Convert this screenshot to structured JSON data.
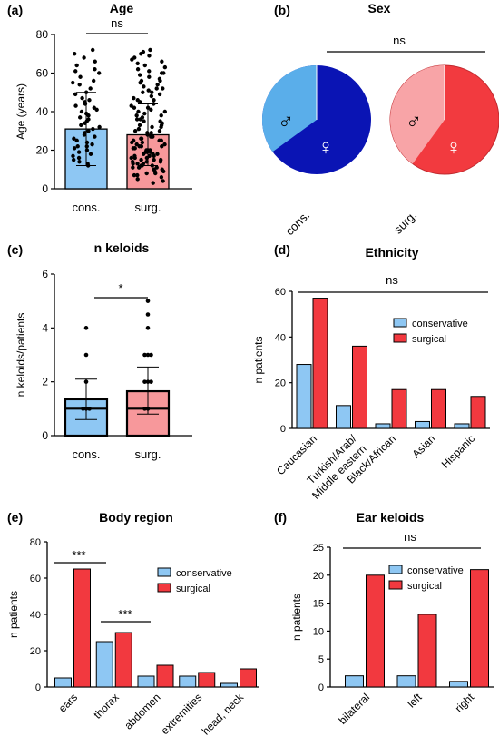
{
  "colors": {
    "cons_light": "#5aaeea",
    "cons_dark": "#0a14b4",
    "surg_red": "#f23a3f",
    "surg_light": "#f8a4a7",
    "bar_cons": "#8ec7f3",
    "bar_surg": "#f2393f",
    "bar_surg_light": "#f7989b",
    "ink": "#000000"
  },
  "chart_data": [
    {
      "id": "a",
      "panel_label": "(a)",
      "type": "bar",
      "title": "Age",
      "ylabel": "Age (years)",
      "xlabel": "",
      "categories": [
        "cons.",
        "surg."
      ],
      "values": [
        31,
        28
      ],
      "sd_upper": [
        50,
        44
      ],
      "sd_lower": [
        12,
        12
      ],
      "ylim": [
        0,
        80
      ],
      "yticks": [
        "0",
        "20",
        "40",
        "60",
        "80"
      ],
      "significance": "ns",
      "points": [
        [
          72,
          70,
          68,
          66,
          64,
          62,
          61,
          60,
          58,
          56,
          55,
          54,
          52,
          50,
          49,
          47,
          46,
          45,
          44,
          43,
          42,
          41,
          40,
          39,
          38,
          37,
          36,
          35,
          34,
          33,
          32,
          31,
          30,
          29,
          28,
          27,
          26,
          25,
          24,
          23,
          22,
          22,
          21,
          20,
          19,
          18,
          17,
          16,
          15,
          14,
          13,
          12
        ],
        [
          72,
          71,
          70,
          69,
          68,
          67,
          66,
          65,
          64,
          63,
          62,
          61,
          60,
          60,
          59,
          58,
          57,
          56,
          56,
          55,
          54,
          53,
          52,
          52,
          51,
          50,
          50,
          49,
          48,
          47,
          46,
          46,
          45,
          44,
          43,
          42,
          42,
          41,
          40,
          40,
          39,
          38,
          38,
          37,
          36,
          36,
          35,
          35,
          34,
          33,
          33,
          32,
          32,
          31,
          30,
          30,
          29,
          29,
          28,
          28,
          27,
          27,
          26,
          26,
          25,
          25,
          25,
          24,
          24,
          23,
          23,
          22,
          22,
          22,
          21,
          21,
          21,
          20,
          20,
          20,
          19,
          19,
          19,
          18,
          18,
          18,
          17,
          17,
          17,
          16,
          16,
          16,
          15,
          15,
          15,
          14,
          14,
          14,
          13,
          13,
          13,
          12,
          12,
          12,
          11,
          11,
          11,
          10,
          10,
          9,
          9,
          8,
          8,
          7,
          7,
          6,
          5,
          4,
          3
        ]
      ]
    },
    {
      "id": "b",
      "panel_label": "(b)",
      "type": "pie",
      "title": "Sex",
      "significance": "ns",
      "categories": [
        "cons.",
        "surg."
      ],
      "symbols": {
        "male": "♂",
        "female": "♀"
      },
      "male_fraction": [
        0.35,
        0.4
      ]
    },
    {
      "id": "c",
      "panel_label": "(c)",
      "type": "bar",
      "title": "n keloids",
      "ylabel": "n keloids/patients",
      "xlabel": "",
      "categories": [
        "cons.",
        "surg."
      ],
      "values": [
        1.35,
        1.65
      ],
      "median": [
        1,
        1
      ],
      "sd_upper": [
        2.1,
        2.55
      ],
      "sd_lower": [
        0.6,
        0.8
      ],
      "ylim": [
        0,
        6
      ],
      "yticks": [
        "0",
        "2",
        "4",
        "6"
      ],
      "significance": "*",
      "points": [
        [
          4,
          3,
          2,
          1,
          1,
          1
        ],
        [
          5,
          4.5,
          4,
          3,
          3,
          3,
          2,
          2,
          2,
          1,
          1
        ]
      ]
    },
    {
      "id": "d",
      "panel_label": "(d)",
      "type": "bar",
      "title": "Ethnicity",
      "ylabel": "n patients",
      "xlabel": "",
      "categories": [
        "Caucasian",
        "Turkish/Arab/",
        "Black/African",
        "Asian",
        "Hispanic"
      ],
      "category_second_line": [
        "",
        "Middle eastern",
        "",
        "",
        ""
      ],
      "series": [
        {
          "name": "conservative",
          "values": [
            28,
            10,
            2,
            3,
            2
          ]
        },
        {
          "name": "surgical",
          "values": [
            57,
            36,
            17,
            17,
            14
          ]
        }
      ],
      "ylim": [
        0,
        60
      ],
      "yticks": [
        "0",
        "20",
        "40",
        "60"
      ],
      "significance": "ns",
      "legend_position": "top-right"
    },
    {
      "id": "e",
      "panel_label": "(e)",
      "type": "bar",
      "title": "Body region",
      "ylabel": "n patients",
      "xlabel": "",
      "categories": [
        "ears",
        "thorax",
        "abdomen",
        "extremities",
        "head, neck"
      ],
      "series": [
        {
          "name": "conservative",
          "values": [
            5,
            25,
            6,
            6,
            2
          ]
        },
        {
          "name": "surgical",
          "values": [
            65,
            30,
            12,
            8,
            10
          ]
        }
      ],
      "ylim": [
        0,
        80
      ],
      "yticks": [
        "0",
        "20",
        "40",
        "60",
        "80"
      ],
      "significance_marks": [
        "***",
        "***"
      ],
      "legend_position": "top-right"
    },
    {
      "id": "f",
      "panel_label": "(f)",
      "type": "bar",
      "title": "Ear keloids",
      "ylabel": "n patients",
      "xlabel": "",
      "categories": [
        "bilateral",
        "left",
        "right"
      ],
      "series": [
        {
          "name": "conservative",
          "values": [
            2,
            2,
            1
          ]
        },
        {
          "name": "surgical",
          "values": [
            20,
            13,
            21
          ]
        }
      ],
      "ylim": [
        0,
        25
      ],
      "yticks": [
        "0",
        "5",
        "10",
        "15",
        "20",
        "25"
      ],
      "significance": "ns",
      "legend_position": "top-right"
    }
  ]
}
